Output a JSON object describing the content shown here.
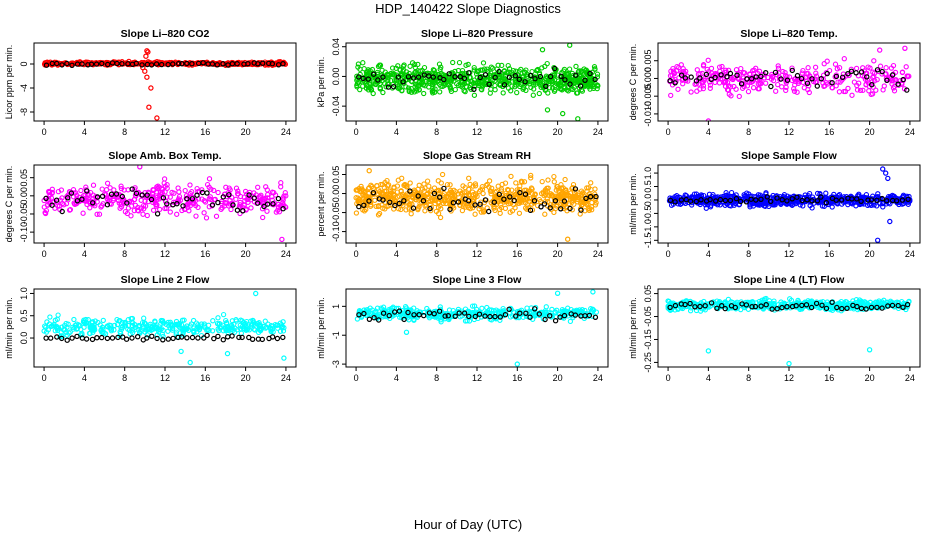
{
  "figure": {
    "title": "HDP_140422  Slope Diagnostics",
    "xlabel": "Hour of Day (UTC)"
  },
  "chart_data": [
    {
      "type": "scatter",
      "title": "Slope Li–820 CO2",
      "ylabel": "Licor ppm per min.",
      "color": "#ff0000",
      "ylim": [
        -9.5,
        3.5
      ],
      "yticks": [
        -8,
        -4,
        0
      ],
      "ytick_labels": [
        "-8",
        "-4",
        "0"
      ],
      "center": 0.1,
      "spread": 0.25,
      "density": 380,
      "black_center": 0.0,
      "black_spread": 0.2,
      "outliers": [
        {
          "x": 10.2,
          "y": 2.2
        },
        {
          "x": 10.3,
          "y": 2.0
        },
        {
          "x": 10.1,
          "y": 1.3
        },
        {
          "x": 10.0,
          "y": -1.2
        },
        {
          "x": 10.2,
          "y": -2.2
        },
        {
          "x": 10.6,
          "y": -4.0
        },
        {
          "x": 10.4,
          "y": -7.2
        },
        {
          "x": 11.2,
          "y": -9.0
        },
        {
          "x": 9.8,
          "y": -0.6
        }
      ]
    },
    {
      "type": "scatter",
      "title": "Slope Li–820 Pressure",
      "ylabel": "kPa per min.",
      "color": "#00cc00",
      "ylim": [
        -0.06,
        0.045
      ],
      "yticks": [
        -0.04,
        0.0,
        0.04
      ],
      "ytick_labels": [
        "-0.04",
        "0.00",
        "0.04"
      ],
      "center": -0.004,
      "spread": 0.018,
      "density": 700,
      "black_center": -0.004,
      "black_spread": 0.01,
      "outliers": [
        {
          "x": 21.2,
          "y": 0.042
        },
        {
          "x": 20.5,
          "y": -0.05
        },
        {
          "x": 19.0,
          "y": -0.045
        },
        {
          "x": 22.0,
          "y": -0.057
        },
        {
          "x": 18.5,
          "y": 0.036
        }
      ]
    },
    {
      "type": "scatter",
      "title": "Slope Li–820 Temp.",
      "ylabel": "degrees C per min.",
      "color": "#ff00ff",
      "ylim": [
        -0.012,
        0.01
      ],
      "yticks": [
        -0.01,
        -0.005,
        0.0,
        0.005
      ],
      "ytick_labels": [
        "-0.010",
        "-0.005",
        "0.000",
        "0.005"
      ],
      "center": 0.0,
      "spread": 0.004,
      "density": 330,
      "black_center": 0.0,
      "black_spread": 0.0025,
      "outliers": [
        {
          "x": 4.0,
          "y": -0.012
        },
        {
          "x": 23.5,
          "y": 0.0085
        },
        {
          "x": 21.0,
          "y": 0.008
        }
      ]
    },
    {
      "type": "scatter",
      "title": "Slope Amb. Box Temp.",
      "ylabel": "degrees C per min.",
      "color": "#ff00ff",
      "ylim": [
        -0.13,
        0.085
      ],
      "yticks": [
        -0.1,
        -0.05,
        0.0,
        0.05
      ],
      "ytick_labels": [
        "-0.10",
        "-0.05",
        "0.00",
        "0.05"
      ],
      "center": -0.01,
      "spread": 0.04,
      "density": 400,
      "black_center": -0.01,
      "black_spread": 0.035,
      "outliers": [
        {
          "x": 9.5,
          "y": 0.08
        },
        {
          "x": 23.6,
          "y": -0.12
        }
      ]
    },
    {
      "type": "scatter",
      "title": "Slope Gas Stream RH",
      "ylabel": "percent per min.",
      "color": "#ffa500",
      "ylim": [
        -0.13,
        0.075
      ],
      "yticks": [
        -0.1,
        -0.05,
        0.0,
        0.05
      ],
      "ytick_labels": [
        "-0.10",
        "-0.05",
        "0.00",
        "0.05"
      ],
      "center": -0.01,
      "spread": 0.04,
      "density": 650,
      "black_center": -0.02,
      "black_spread": 0.03,
      "outliers": [
        {
          "x": 21.0,
          "y": -0.12
        },
        {
          "x": 1.3,
          "y": 0.06
        }
      ]
    },
    {
      "type": "scatter",
      "title": "Slope Sample Flow",
      "ylabel": "ml/min per min.",
      "color": "#0000ff",
      "ylim": [
        -1.6,
        1.3
      ],
      "yticks": [
        -1.5,
        -1.0,
        -0.5,
        0.0,
        0.5,
        1.0
      ],
      "ytick_labels": [
        "-1.5",
        "-1.0",
        "-0.5",
        "0.0",
        "0.5",
        "1.0"
      ],
      "center": 0.0,
      "spread": 0.22,
      "density": 600,
      "black_center": 0.0,
      "black_spread": 0.1,
      "outliers": [
        {
          "x": 21.3,
          "y": 1.15
        },
        {
          "x": 21.6,
          "y": 1.0
        },
        {
          "x": 20.8,
          "y": -1.5
        },
        {
          "x": 22.0,
          "y": -0.8
        },
        {
          "x": 21.8,
          "y": 0.8
        }
      ]
    },
    {
      "type": "scatter",
      "title": "Slope Line 2 Flow",
      "ylabel": "ml/min per min.",
      "color": "#00ffff",
      "ylim": [
        -0.65,
        1.1
      ],
      "yticks": [
        0.0,
        0.5,
        1.0
      ],
      "ytick_labels": [
        "0.0",
        "0.5",
        "1.0"
      ],
      "center": 0.25,
      "spread": 0.18,
      "density": 360,
      "black_center": 0.0,
      "black_spread": 0.05,
      "outliers": [
        {
          "x": 14.5,
          "y": -0.55
        },
        {
          "x": 18.2,
          "y": -0.35
        },
        {
          "x": 23.8,
          "y": -0.45
        },
        {
          "x": 21.0,
          "y": 1.0
        },
        {
          "x": 13.6,
          "y": -0.3
        }
      ]
    },
    {
      "type": "scatter",
      "title": "Slope Line 3 Flow",
      "ylabel": "ml/min per min.",
      "color": "#00ffff",
      "ylim": [
        -3.2,
        2.2
      ],
      "yticks": [
        -3,
        -1,
        1
      ],
      "ytick_labels": [
        "-3",
        "-1",
        "1"
      ],
      "center": 0.5,
      "spread": 0.45,
      "density": 380,
      "black_center": 0.4,
      "black_spread": 0.35,
      "outliers": [
        {
          "x": 16.0,
          "y": -3.0
        },
        {
          "x": 23.5,
          "y": 2.0
        },
        {
          "x": 20.0,
          "y": 1.9
        },
        {
          "x": 5.0,
          "y": -0.8
        }
      ]
    },
    {
      "type": "scatter",
      "title": "Slope Line 4 (LT) Flow",
      "ylabel": "ml/min per min.",
      "color": "#00ffff",
      "ylim": [
        -0.27,
        0.07
      ],
      "yticks": [
        -0.25,
        -0.15,
        -0.05,
        0.05
      ],
      "ytick_labels": [
        "-0.25",
        "-0.15",
        "-0.05",
        "0.05"
      ],
      "center": 0.0,
      "spread": 0.02,
      "density": 520,
      "black_center": -0.005,
      "black_spread": 0.015,
      "outliers": [
        {
          "x": 4.0,
          "y": -0.2
        },
        {
          "x": 12.0,
          "y": -0.255
        },
        {
          "x": 20.0,
          "y": -0.195
        }
      ]
    }
  ],
  "x_axis": {
    "xlim": [
      -1,
      25
    ],
    "ticks": [
      0,
      4,
      8,
      12,
      16,
      20,
      24
    ],
    "tick_labels": [
      "0",
      "4",
      "8",
      "12",
      "16",
      "20",
      "24"
    ]
  }
}
